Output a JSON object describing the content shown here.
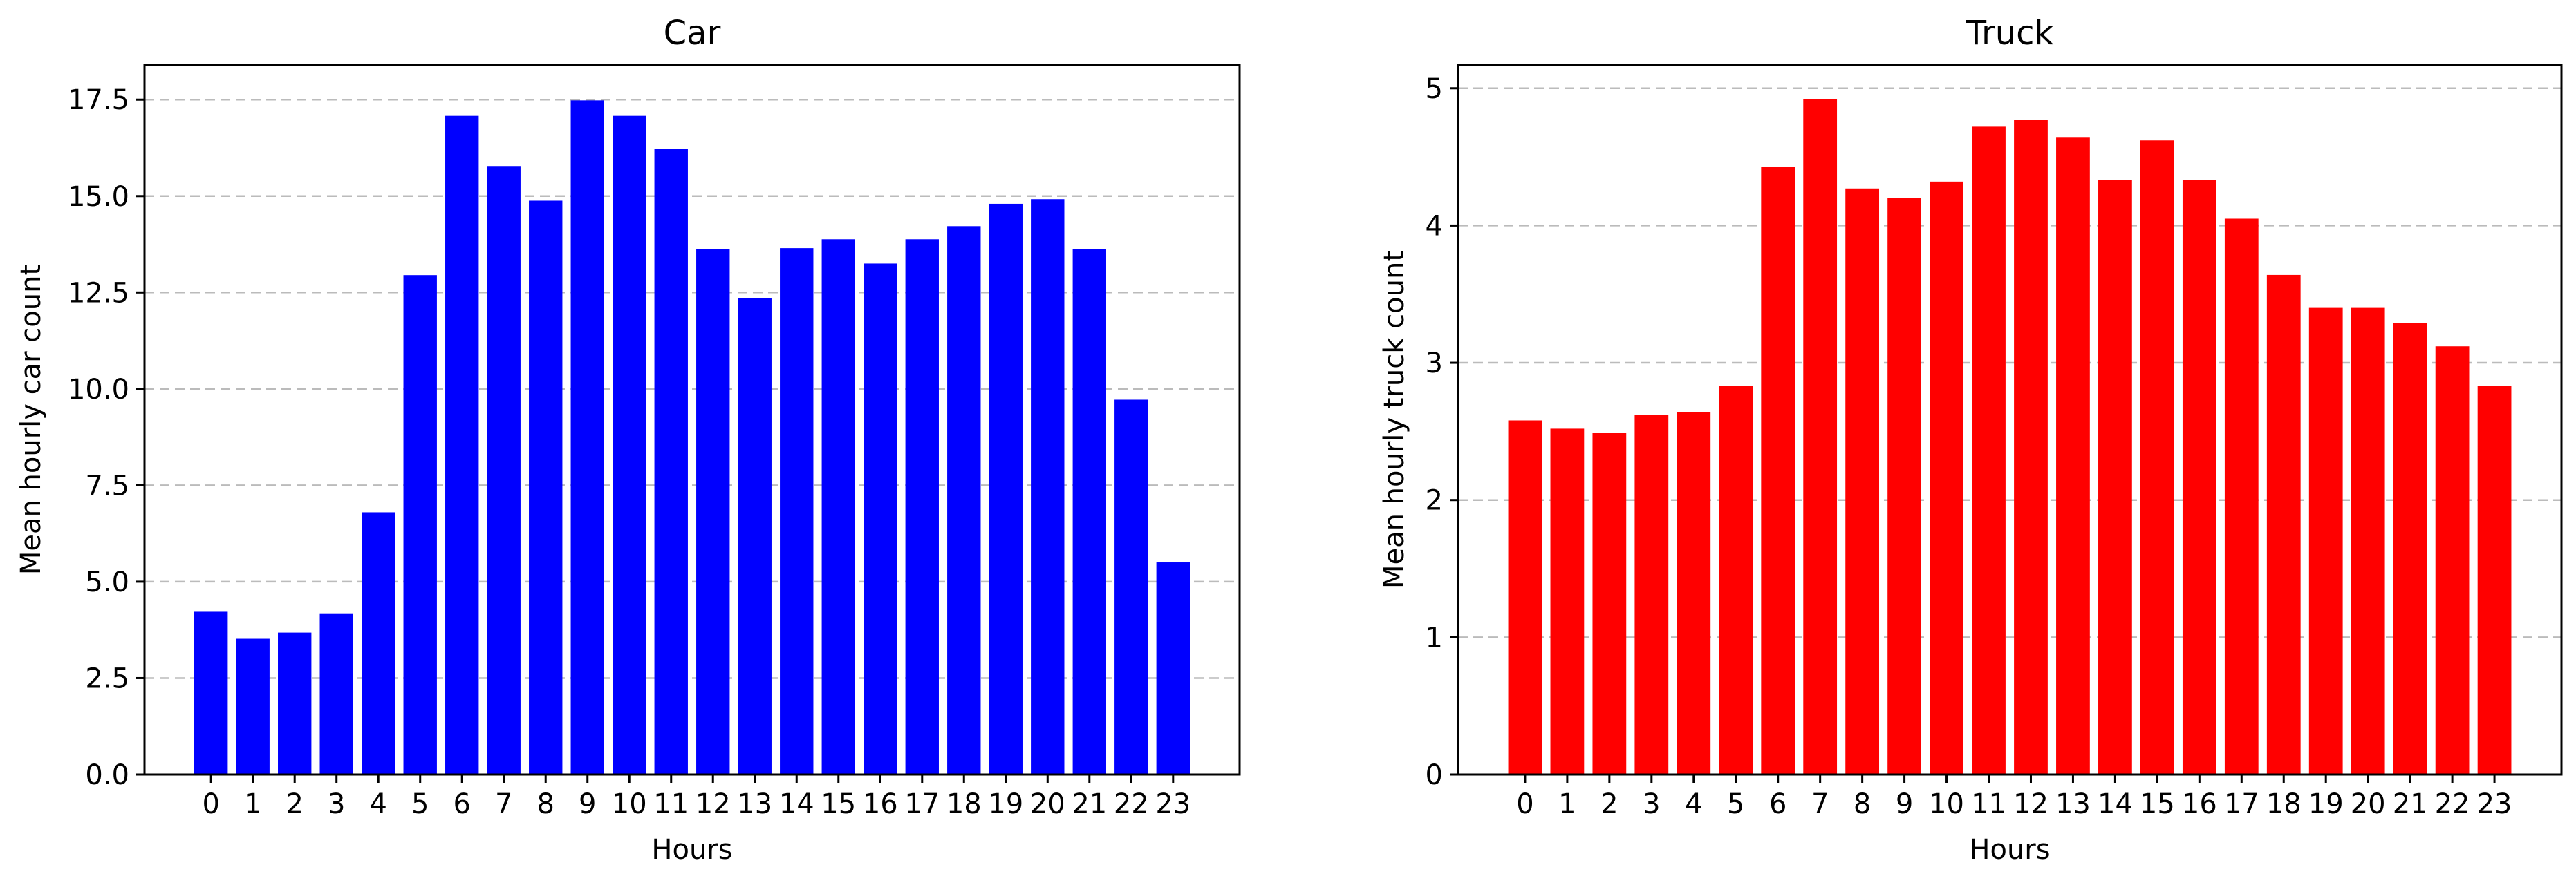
{
  "chart_data": [
    {
      "type": "bar",
      "title": "Car",
      "xlabel": "Hours",
      "ylabel": "Mean hourly car count",
      "color": "#0000ff",
      "categories": [
        "0",
        "1",
        "2",
        "3",
        "4",
        "5",
        "6",
        "7",
        "8",
        "9",
        "10",
        "11",
        "12",
        "13",
        "14",
        "15",
        "16",
        "17",
        "18",
        "19",
        "20",
        "21",
        "22",
        "23"
      ],
      "values": [
        4.22,
        3.52,
        3.68,
        4.18,
        6.8,
        12.95,
        17.08,
        15.78,
        14.88,
        17.48,
        17.08,
        16.22,
        13.62,
        12.35,
        13.65,
        13.88,
        13.25,
        13.88,
        14.22,
        14.8,
        14.92,
        13.62,
        9.72,
        5.5
      ],
      "ylim": [
        0,
        18.4
      ],
      "yticks": [
        0.0,
        2.5,
        5.0,
        7.5,
        10.0,
        12.5,
        15.0,
        17.5
      ],
      "ytick_labels": [
        "0.0",
        "2.5",
        "5.0",
        "7.5",
        "10.0",
        "12.5",
        "15.0",
        "17.5"
      ],
      "grid": "y-dashed"
    },
    {
      "type": "bar",
      "title": "Truck",
      "xlabel": "Hours",
      "ylabel": "Mean hourly truck count",
      "color": "#ff0000",
      "categories": [
        "0",
        "1",
        "2",
        "3",
        "4",
        "5",
        "6",
        "7",
        "8",
        "9",
        "10",
        "11",
        "12",
        "13",
        "14",
        "15",
        "16",
        "17",
        "18",
        "19",
        "20",
        "21",
        "22",
        "23"
      ],
      "values": [
        2.58,
        2.52,
        2.49,
        2.62,
        2.64,
        2.83,
        4.43,
        4.92,
        4.27,
        4.2,
        4.32,
        4.72,
        4.77,
        4.64,
        4.33,
        4.62,
        4.33,
        4.05,
        3.64,
        3.4,
        3.4,
        3.29,
        3.12,
        2.83
      ],
      "ylim": [
        0,
        5.17
      ],
      "yticks": [
        0,
        1,
        2,
        3,
        4,
        5
      ],
      "ytick_labels": [
        "0",
        "1",
        "2",
        "3",
        "4",
        "5"
      ],
      "grid": "y-dashed"
    }
  ]
}
